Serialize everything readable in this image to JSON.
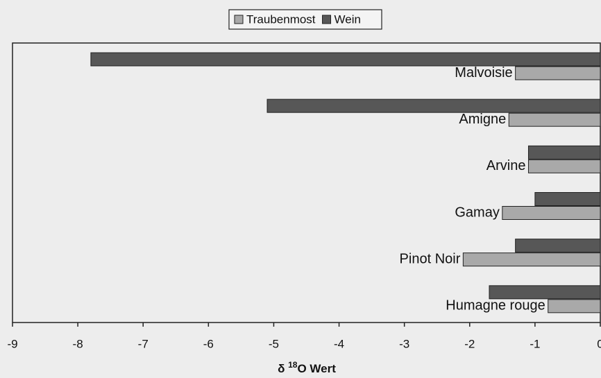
{
  "chart_data": {
    "type": "barh",
    "categories": [
      "Malvoisie",
      "Amigne",
      "Arvine",
      "Gamay",
      "Pinot Noir",
      "Humagne rouge"
    ],
    "series": [
      {
        "name": "Traubenmost",
        "color": "#a9a9a9",
        "values": [
          -1.3,
          -1.4,
          -1.1,
          -1.5,
          -2.1,
          -0.8
        ]
      },
      {
        "name": "Wein",
        "color": "#575757",
        "values": [
          -7.8,
          -5.1,
          -1.1,
          -1.0,
          -1.3,
          -1.7
        ]
      }
    ],
    "xlim": [
      -9,
      0
    ],
    "xticks": [
      -9,
      -8,
      -7,
      -6,
      -5,
      -4,
      -3,
      -2,
      -1,
      0
    ],
    "xlabel": [
      "δ",
      "18",
      "O Wert"
    ],
    "legend": "top"
  }
}
